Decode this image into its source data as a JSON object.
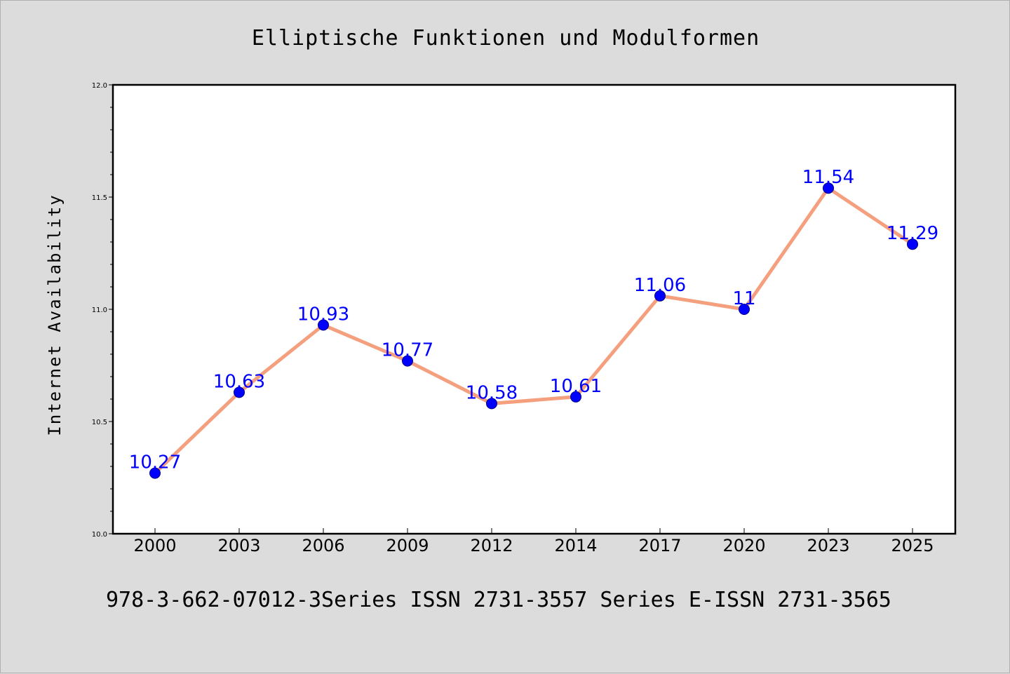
{
  "chart_data": {
    "type": "line",
    "title": "Elliptische Funktionen und Modulformen",
    "ylabel": "Internet Availability",
    "xlabel": "",
    "footer": "978-3-662-07012-3Series ISSN 2731-3557 Series E-ISSN 2731-3565",
    "categories": [
      "2000",
      "2003",
      "2006",
      "2009",
      "2012",
      "2014",
      "2017",
      "2020",
      "2023",
      "2025"
    ],
    "series": [
      {
        "values": [
          10.27,
          10.63,
          10.93,
          10.77,
          10.58,
          10.61,
          11.06,
          11,
          11.54,
          11.29
        ],
        "labels": [
          "10.27",
          "10.63",
          "10.93",
          "10.77",
          "10.58",
          "10.61",
          "11.06",
          "11",
          "11.54",
          "11.29"
        ]
      }
    ],
    "ylim": [
      10.0,
      12.0
    ],
    "yticks": [
      "10.0",
      "10.5",
      "11.0",
      "11.5",
      "12.0"
    ],
    "grid": false,
    "colors": {
      "line": "#f4a07e",
      "marker": "#0000ff",
      "label": "#0000ff",
      "background": "#dcdcdc",
      "plot_background": "#ffffff"
    }
  }
}
